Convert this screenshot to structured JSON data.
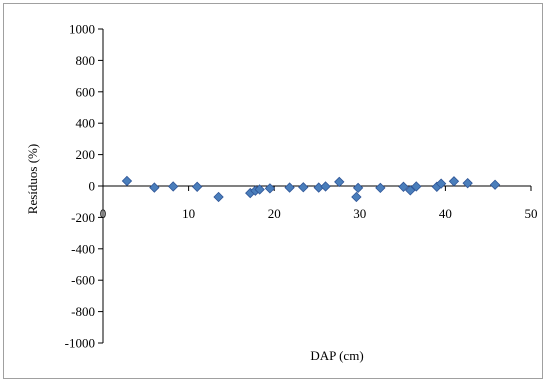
{
  "chart_data": {
    "type": "scatter",
    "title": "",
    "xlabel": "DAP (cm)",
    "ylabel": "Resíduos (%)",
    "xlim": [
      0,
      50
    ],
    "ylim": [
      -1000,
      1000
    ],
    "x_ticks": [
      0,
      10,
      20,
      30,
      40,
      50
    ],
    "y_ticks": [
      1000,
      800,
      600,
      400,
      200,
      0,
      -200,
      -400,
      -600,
      -800,
      -1000
    ],
    "grid": false,
    "legend": "none",
    "marker": "diamond",
    "marker_color": "#4a7ebb",
    "marker_edge_color": "#2f5597",
    "series": [
      {
        "x": [
          2.8,
          6.0,
          8.2,
          11.0,
          13.5,
          17.2,
          17.8,
          18.3,
          19.5,
          21.8,
          23.4,
          25.2,
          26.0,
          27.6,
          29.6,
          29.8,
          32.4,
          35.1,
          35.9,
          36.6,
          39.0,
          39.5,
          41.0,
          42.6,
          45.8
        ],
        "y": [
          32,
          -10,
          -3,
          -5,
          -70,
          -45,
          -30,
          -22,
          -15,
          -10,
          -8,
          -10,
          -3,
          26,
          -70,
          -12,
          -12,
          -5,
          -28,
          -3,
          -5,
          15,
          30,
          18,
          8
        ]
      }
    ]
  }
}
